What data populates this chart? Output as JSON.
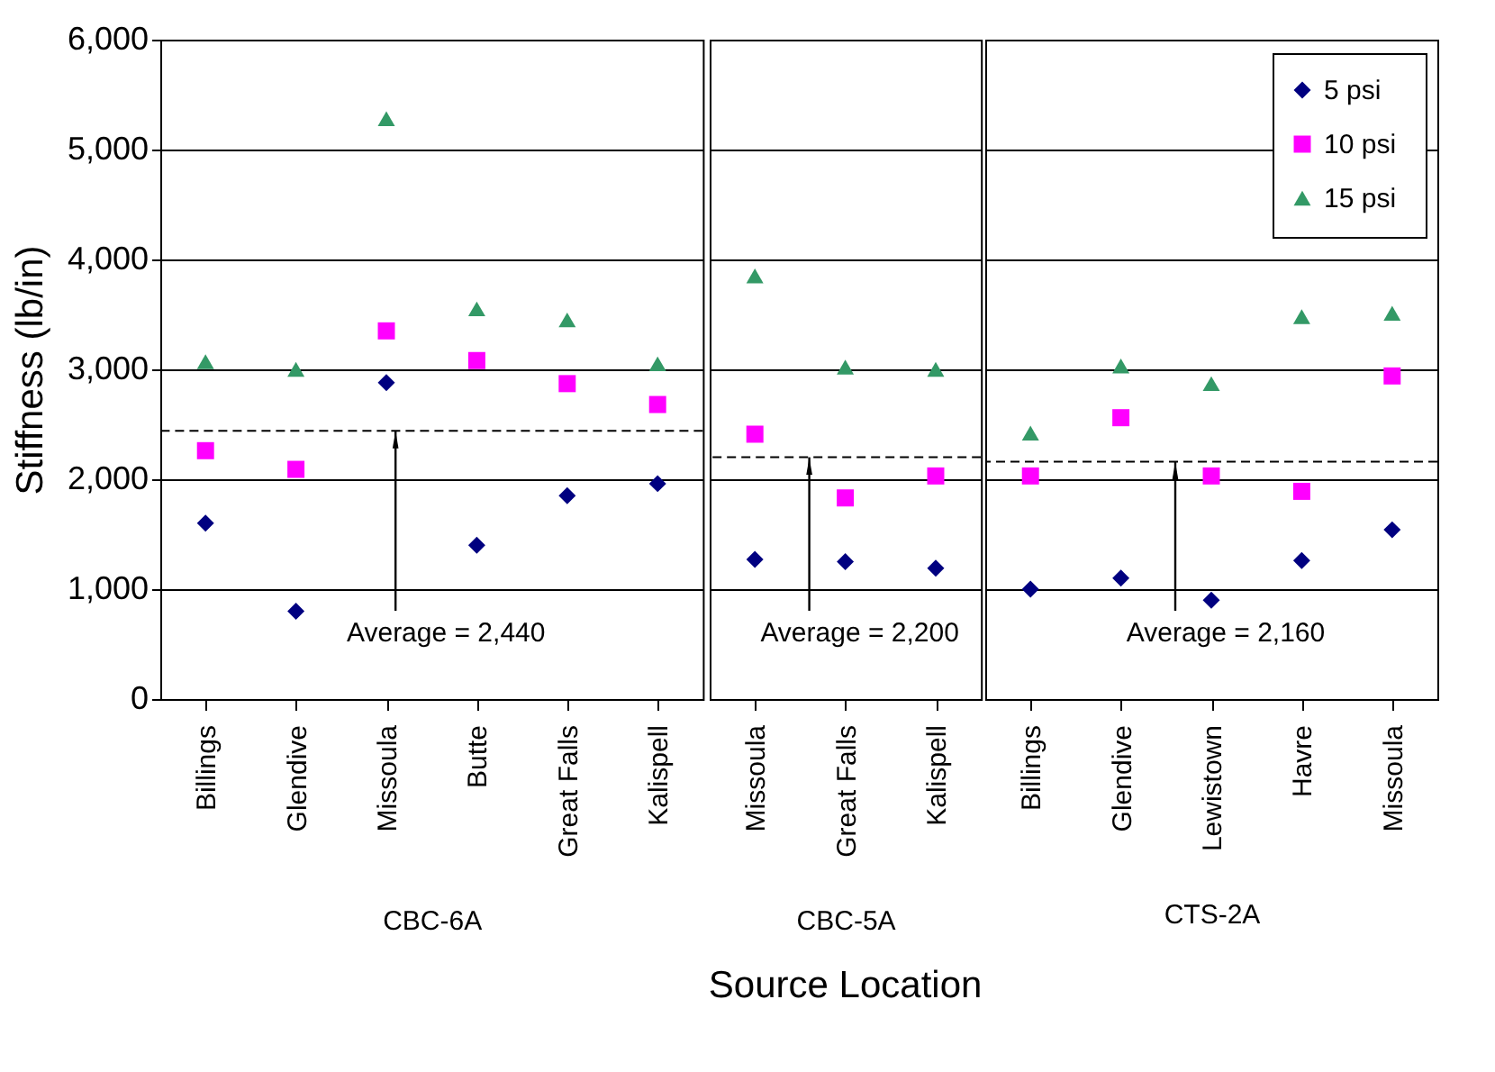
{
  "chart_data": [
    {
      "type": "scatter",
      "xlabel": "CBC-6A",
      "ylabel": "Stiffness (lb/in)",
      "categories": [
        "Billings",
        "Glendive",
        "Missoula",
        "Butte",
        "Great Falls",
        "Kalispell"
      ],
      "ylim": [
        0,
        6000
      ],
      "yticks": [
        {
          "value": 0,
          "label": "0"
        },
        {
          "value": 1000,
          "label": "1,000"
        },
        {
          "value": 2000,
          "label": "2,000"
        },
        {
          "value": 3000,
          "label": "3,000"
        },
        {
          "value": 4000,
          "label": "4,000"
        },
        {
          "value": 5000,
          "label": "5,000"
        },
        {
          "value": 6000,
          "label": "6,000"
        }
      ],
      "grid": "y",
      "legend": false,
      "series": [
        {
          "color": "#000080",
          "marker": "diamond",
          "values": [
            1600,
            800,
            2880,
            1400,
            1850,
            1960
          ]
        },
        {
          "color": "#ff00ff",
          "marker": "square",
          "values": [
            2260,
            2090,
            3350,
            3080,
            2870,
            2680
          ]
        },
        {
          "color": "#339966",
          "marker": "triangle",
          "values": [
            3070,
            3000,
            5280,
            3550,
            3450,
            3050
          ]
        }
      ],
      "ref_lines": [
        {
          "axis": "y",
          "value": 2440,
          "label": "Average = 2,440",
          "line_style": "dashed",
          "color": "#000000"
        }
      ]
    },
    {
      "type": "scatter",
      "title": "Source Location",
      "xlabel": "CBC-5A",
      "categories": [
        "Missoula",
        "Great Falls",
        "Kalispell"
      ],
      "ylim": [
        0,
        6000
      ],
      "yticks": [
        0,
        1000,
        2000,
        3000,
        4000,
        5000,
        6000
      ],
      "grid": "y",
      "legend": false,
      "tick_labels": "x",
      "series": [
        {
          "color": "#000080",
          "marker": "diamond",
          "values": [
            1270,
            1250,
            1190
          ]
        },
        {
          "color": "#ff00ff",
          "marker": "square",
          "values": [
            2410,
            1830,
            2030
          ]
        },
        {
          "color": "#339966",
          "marker": "triangle",
          "values": [
            3850,
            3020,
            3000
          ]
        }
      ],
      "ref_lines": [
        {
          "axis": "y",
          "value": 2200,
          "label": "Average = 2,200",
          "line_style": "dashed",
          "color": "#000000"
        }
      ]
    },
    {
      "type": "scatter",
      "xlabel": "CTS-2A",
      "categories": [
        "Billings",
        "Glendive",
        "Lewistown",
        "Havre",
        "Missoula"
      ],
      "ylim": [
        0,
        6000
      ],
      "yticks": [
        0,
        1000,
        2000,
        3000,
        4000,
        5000,
        6000
      ],
      "grid": "y",
      "legend": "top right",
      "tick_labels": "x",
      "series": [
        {
          "name": "5 psi",
          "color": "#000080",
          "marker": "diamond",
          "values": [
            1000,
            1100,
            900,
            1260,
            1540
          ]
        },
        {
          "name": "10 psi",
          "color": "#ff00ff",
          "marker": "square",
          "values": [
            2030,
            2560,
            2030,
            1890,
            2940
          ]
        },
        {
          "name": "15 psi",
          "color": "#339966",
          "marker": "triangle",
          "values": [
            2420,
            3030,
            2870,
            3480,
            3510
          ]
        }
      ],
      "ref_lines": [
        {
          "axis": "y",
          "value": 2160,
          "label": "Average = 2,160",
          "line_style": "dashed",
          "color": "#000000"
        }
      ]
    }
  ]
}
